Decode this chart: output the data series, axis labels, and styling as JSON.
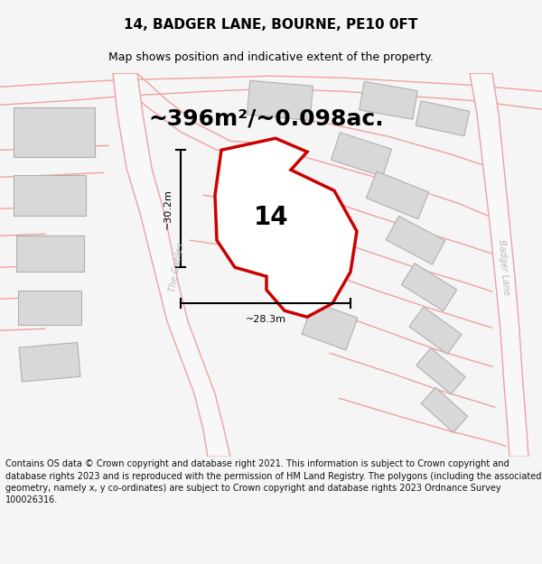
{
  "title": "14, BADGER LANE, BOURNE, PE10 0FT",
  "subtitle": "Map shows position and indicative extent of the property.",
  "area_text": "~396m²/~0.098ac.",
  "label_14": "14",
  "dim_vertical": "~30.2m",
  "dim_horizontal": "~28.3m",
  "footer": "Contains OS data © Crown copyright and database right 2021. This information is subject to Crown copyright and database rights 2023 and is reproduced with the permission of HM Land Registry. The polygons (including the associated geometry, namely x, y co-ordinates) are subject to Crown copyright and database rights 2023 Ordnance Survey 100026316.",
  "bg_color": "#f5f5f5",
  "map_bg": "#ffffff",
  "road_color": "#f0a0a0",
  "road_fill": "#f8f8f8",
  "highlight_color": "#cc0000",
  "building_color": "#d8d8d8",
  "building_edge": "#b0b0b0",
  "street_label_color": "#bbbbbb",
  "title_color": "#000000",
  "footer_color": "#111111",
  "title_fontsize": 11,
  "subtitle_fontsize": 9,
  "area_fontsize": 18,
  "label_fontsize": 20,
  "dim_fontsize": 8,
  "footer_fontsize": 7
}
